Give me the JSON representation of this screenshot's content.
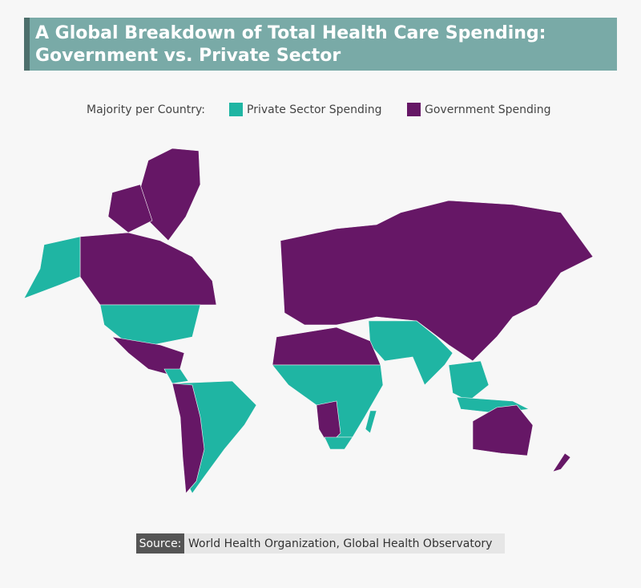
{
  "header": {
    "title_lines": [
      "A Global Breakdown of Total Health Care Spending:",
      "Government vs. Private Sector"
    ]
  },
  "legend": {
    "label": "Majority per Country:",
    "items": [
      {
        "name": "Private Sector Spending",
        "color": "#1fb5a3"
      },
      {
        "name": "Government Spending",
        "color": "#661766"
      }
    ]
  },
  "source": {
    "label": "Source:",
    "text": "World Health Organization, Global Health Observatory"
  }
}
